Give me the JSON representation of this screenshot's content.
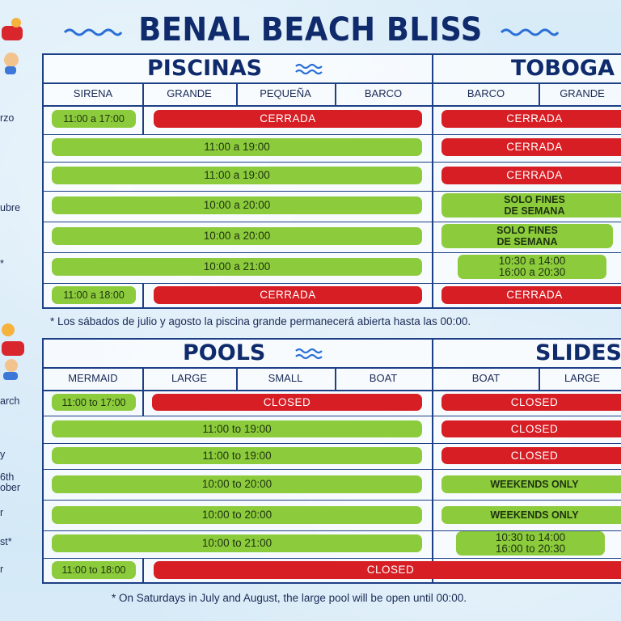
{
  "title": "BENAL BEACH BLISS",
  "spanish": {
    "pools_title": "PISCINAS",
    "slides_title": "TOBOGA",
    "columns": [
      "SIRENA",
      "GRANDE",
      "PEQUEÑA",
      "BARCO",
      "BARCO",
      "GRANDE"
    ],
    "row_labels": [
      "rzo",
      "",
      "",
      "\nubre",
      "",
      "*",
      ""
    ],
    "rows": [
      {
        "sirena": "11:00 a 17:00",
        "pools": "CERRADA",
        "slides": "CERRADA"
      },
      {
        "pools": "11:00 a 19:00",
        "slides": "CERRADA"
      },
      {
        "pools": "11:00 a 19:00",
        "slides": "CERRADA"
      },
      {
        "pools": "10:00 a 20:00",
        "slides": "SOLO FINES\nDE SEMANA"
      },
      {
        "pools": "10:00 a 20:00",
        "slides": "SOLO FINES\nDE SEMANA"
      },
      {
        "pools": "10:00 a 21:00",
        "slides": "10:30 a 14:00\n16:00 a 20:30"
      },
      {
        "sirena": "11:00 a 18:00",
        "pools": "CERRADA",
        "slides": "CERRADA"
      }
    ],
    "footnote": "* Los sábados de julio y agosto la piscina grande permanecerá abierta hasta las 00:00."
  },
  "english": {
    "pools_title": "POOLS",
    "slides_title": "SLIDES",
    "columns": [
      "MERMAID",
      "LARGE",
      "SMALL",
      "BOAT",
      "BOAT",
      "LARGE"
    ],
    "row_labels": [
      "arch",
      "",
      "y",
      "6th\nober",
      "r",
      "st*",
      "r"
    ],
    "rows": [
      {
        "sirena": "11:00 to 17:00",
        "pools": "CLOSED",
        "slides": "CLOSED"
      },
      {
        "pools": "11:00 to 19:00",
        "slides": "CLOSED"
      },
      {
        "pools": "11:00 to 19:00",
        "slides": "CLOSED"
      },
      {
        "pools": "10:00 to 20:00",
        "slides": "WEEKENDS ONLY"
      },
      {
        "pools": "10:00 to 20:00",
        "slides": "WEEKENDS ONLY"
      },
      {
        "pools": "10:00 to 21:00",
        "slides": "10:30 to 14:00\n16:00 to 20:30"
      },
      {
        "sirena": "11:00 to 18:00",
        "closed_all": "CLOSED"
      }
    ],
    "footnote": "* On Saturdays in July and August, the large pool will be open until 00:00."
  },
  "colors": {
    "navy": "#0f2b6b",
    "green": "#8ccb3c",
    "red": "#d71e24",
    "border": "#1d3f86"
  }
}
